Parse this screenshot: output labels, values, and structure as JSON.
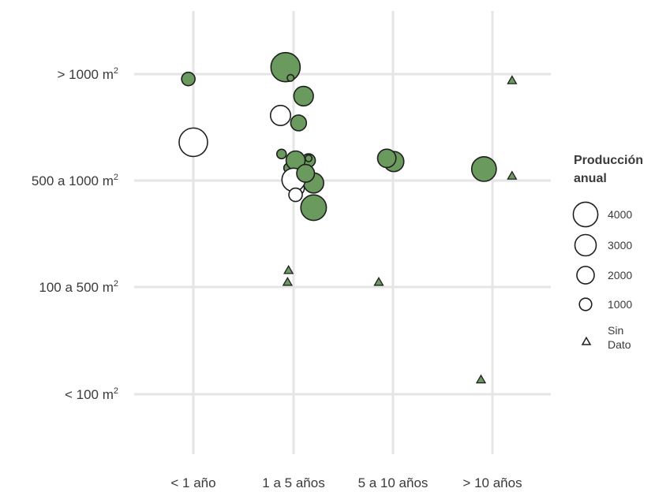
{
  "chart_data": {
    "type": "scatter",
    "title": "",
    "xlabel": "",
    "ylabel": "",
    "x_categories": [
      "< 1 año",
      "1 a 5 años",
      "5 a 10 años",
      "> 10 años"
    ],
    "y_categories": [
      "< 100 m",
      "100 a 500 m",
      "500 a 1000 m",
      "> 1000 m"
    ],
    "y_unit_superscript": "2",
    "grid": true,
    "legend": {
      "title_lines": [
        "Producción",
        "anual"
      ],
      "placement": "right",
      "sizes": [
        {
          "label": "4000",
          "value": 4000
        },
        {
          "label": "3000",
          "value": 3000
        },
        {
          "label": "2000",
          "value": 2000
        },
        {
          "label": "1000",
          "value": 1000
        }
      ],
      "no_data_lines": [
        "Sin",
        "Dato"
      ]
    },
    "colors": {
      "filled": "#6b9a5e",
      "outline": "#1f1f1f",
      "grid": "#e5e5e5",
      "triangle": "#6b9a5e"
    },
    "points": [
      {
        "x": 0.92,
        "y": 3.05,
        "value": 3800,
        "filled": true
      },
      {
        "x": 1.1,
        "y": 2.78,
        "value": 1700,
        "filled": true
      },
      {
        "x": 1.05,
        "y": 2.53,
        "value": 1100,
        "filled": true
      },
      {
        "x": 1.1,
        "y": 2.12,
        "value": 800,
        "filled": true
      },
      {
        "x": 1.15,
        "y": 2.18,
        "value": 800,
        "filled": true
      },
      {
        "x": 1.2,
        "y": 1.74,
        "value": 2900,
        "filled": true
      },
      {
        "x": 1.2,
        "y": 1.97,
        "value": 1800,
        "filled": true
      },
      {
        "x": 0.97,
        "y": 2.95,
        "value": 200,
        "filled": true
      },
      {
        "x": 0.88,
        "y": 2.24,
        "value": 400,
        "filled": true
      },
      {
        "x": 0.95,
        "y": 2.11,
        "value": 400,
        "filled": true
      },
      {
        "x": 1.02,
        "y": 2.18,
        "value": 1600,
        "filled": true
      },
      {
        "x": 0.98,
        "y": 2.02,
        "value": 1200,
        "filled": true
      },
      {
        "x": 1.15,
        "y": 2.2,
        "value": 200,
        "filled": true
      },
      {
        "x": 0.0,
        "y": 2.35,
        "value": 3600,
        "filled": false
      },
      {
        "x": 0.87,
        "y": 2.6,
        "value": 1800,
        "filled": false
      },
      {
        "x": 1.04,
        "y": 1.92,
        "value": 800,
        "filled": false
      },
      {
        "x": 1.0,
        "y": 2.0,
        "value": 2400,
        "filled": false
      },
      {
        "x": 1.02,
        "y": 1.86,
        "value": 800,
        "filled": false
      },
      {
        "x": 2.0,
        "y": 2.18,
        "value": 1400,
        "filled": false
      },
      {
        "x": -0.05,
        "y": 2.94,
        "value": 800,
        "filled": true
      },
      {
        "x": 1.12,
        "y": 2.06,
        "value": 1400,
        "filled": true
      },
      {
        "x": 2.9,
        "y": 2.1,
        "value": 2700,
        "filled": true
      },
      {
        "x": 2.0,
        "y": 2.17,
        "value": 1800,
        "filled": true
      },
      {
        "x": 1.93,
        "y": 2.2,
        "value": 1500,
        "filled": true
      }
    ],
    "no_data_points": [
      {
        "x": 3.18,
        "y": 2.92
      },
      {
        "x": 3.18,
        "y": 2.03
      },
      {
        "x": 0.95,
        "y": 1.15
      },
      {
        "x": 0.94,
        "y": 1.04
      },
      {
        "x": 1.85,
        "y": 1.04
      },
      {
        "x": 2.87,
        "y": 0.13
      }
    ]
  }
}
